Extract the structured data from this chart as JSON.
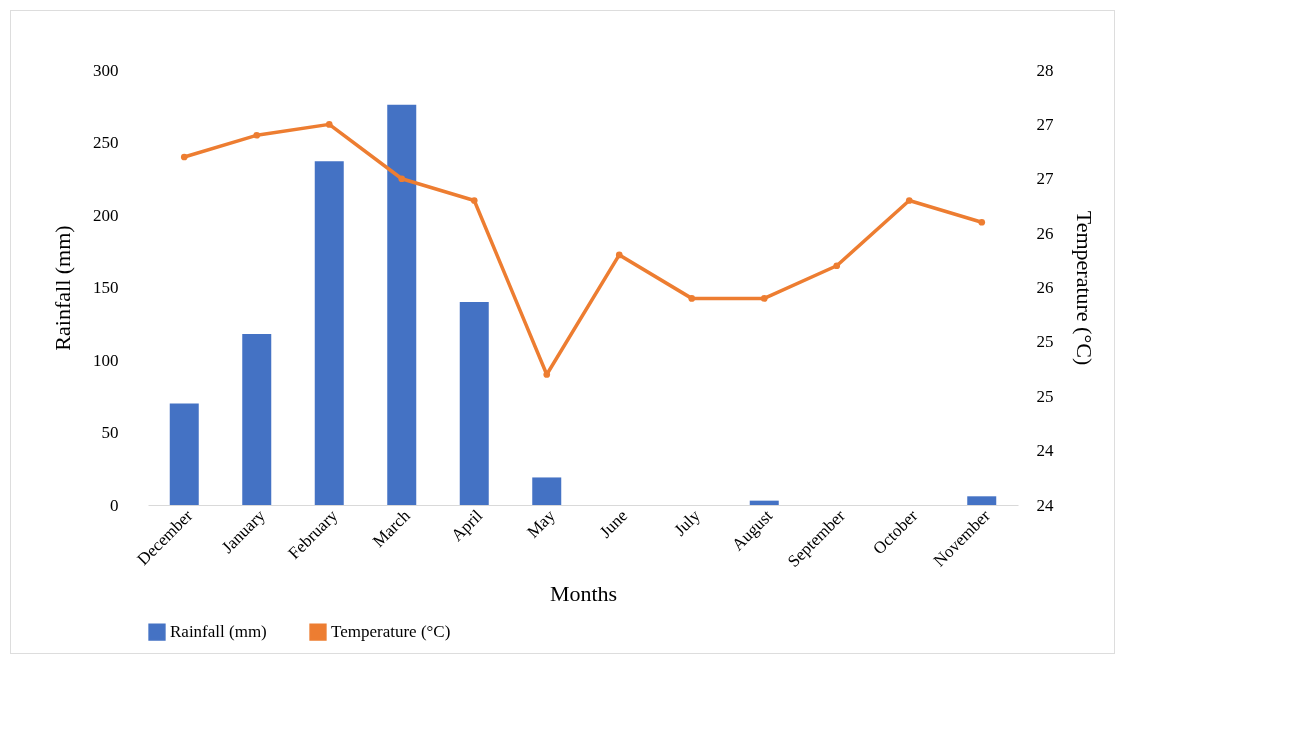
{
  "chart_data": {
    "type": "bar",
    "categories": [
      "December",
      "January",
      "February",
      "March",
      "April",
      "May",
      "June",
      "July",
      "August",
      "September",
      "October",
      "November"
    ],
    "xlabel": "Months",
    "ylabel": "Rainfall (mm)",
    "y2label": "Temperature (°C)",
    "series": [
      {
        "name": "Rainfall (mm)",
        "color": "#4472c4",
        "values": [
          70,
          118,
          237,
          276,
          140,
          19,
          0,
          0,
          3,
          0,
          0,
          6
        ]
      },
      {
        "name": "Temperature (°C)",
        "type": "line",
        "axis": "y2",
        "color": "#ed7d31",
        "marker": "circle",
        "values": [
          27.2,
          27.4,
          27.5,
          27.0,
          26.8,
          25.2,
          26.3,
          25.9,
          25.9,
          26.2,
          26.8,
          26.6
        ]
      }
    ],
    "ylim": [
      0,
      300
    ],
    "yticks": [
      0,
      50,
      100,
      150,
      200,
      250,
      300
    ],
    "y2lim": [
      24,
      28
    ],
    "y2ticks": [
      24,
      {
        "value": 24.5,
        "label": "24"
      },
      25,
      {
        "value": 25.5,
        "label": "25"
      },
      26,
      {
        "value": 26.5,
        "label": "26"
      },
      27,
      {
        "value": 27.5,
        "label": "27"
      },
      28
    ],
    "grid": false,
    "legend": "bottom"
  }
}
